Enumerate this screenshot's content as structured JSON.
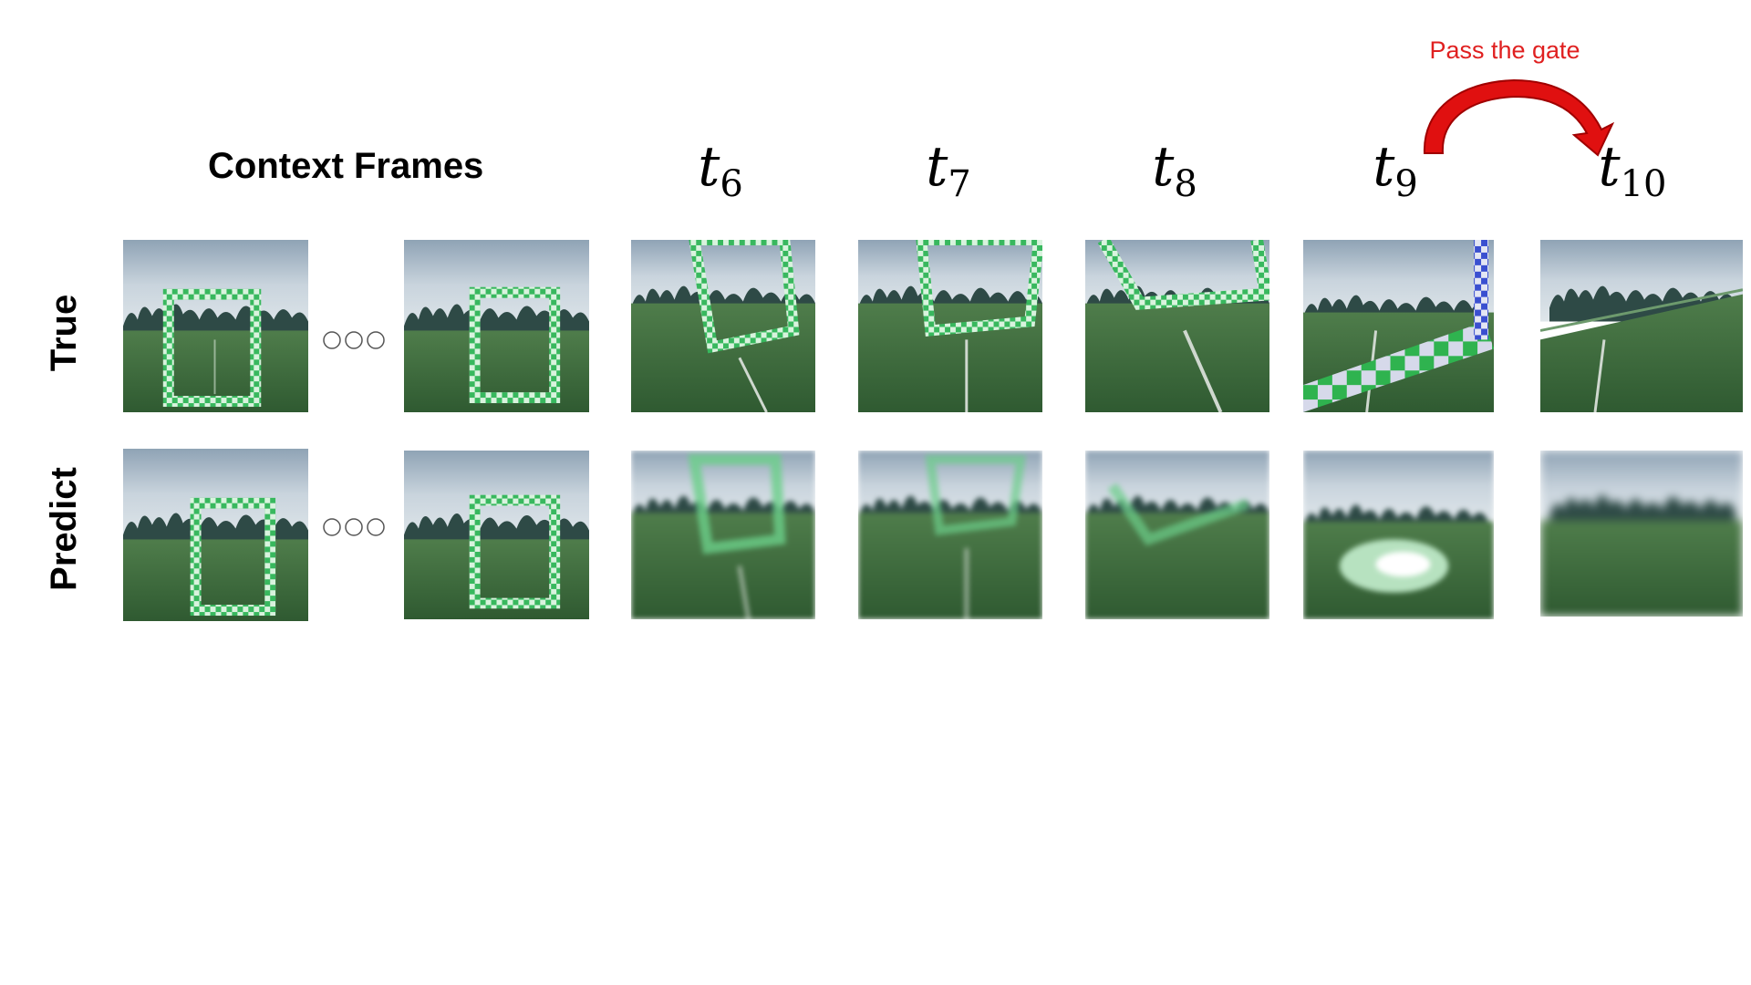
{
  "header": {
    "context_label": "Context Frames",
    "time_steps": [
      {
        "base": "t",
        "sub": "6"
      },
      {
        "base": "t",
        "sub": "7"
      },
      {
        "base": "t",
        "sub": "8"
      },
      {
        "base": "t",
        "sub": "9"
      },
      {
        "base": "t",
        "sub": "10"
      }
    ]
  },
  "annotation": {
    "pass_label": "Pass the gate",
    "arrow_color": "#e01010"
  },
  "rows": {
    "true_label": "True",
    "predict_label": "Predict"
  },
  "colors": {
    "sky": "#b9c7d3",
    "grass": "#3e6b3c",
    "gate_green": "#3cc064",
    "gate_blue": "#3a4fd0"
  }
}
